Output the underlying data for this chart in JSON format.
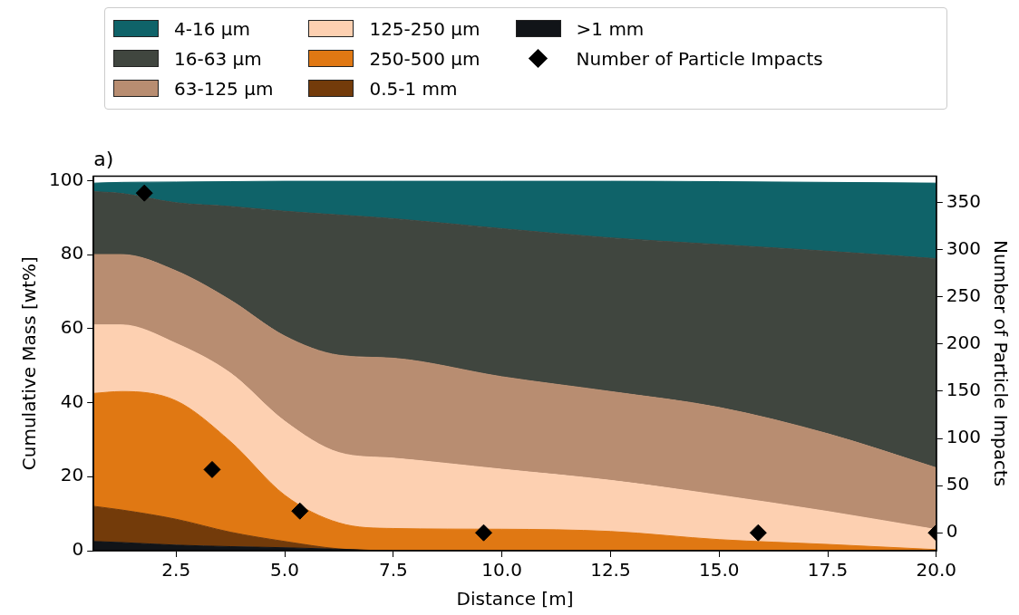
{
  "chart_data": {
    "type": "area",
    "title": "a)",
    "xlabel": "Distance [m]",
    "ylabel": "Cumulative Mass [wt%]",
    "y2label": "Number of Particle Impacts",
    "x": [
      0.6,
      1.25,
      2.5,
      3.75,
      5,
      6.25,
      7.5,
      10,
      12.5,
      15,
      17.5,
      20
    ],
    "stacked": true,
    "series": [
      {
        "name": ">1 mm",
        "color": "#111418",
        "values": [
          2.5,
          2.2,
          1.5,
          1.1,
          0.8,
          0.4,
          0,
          0,
          0,
          0,
          0,
          0
        ]
      },
      {
        "name": "0.5-1 mm",
        "color": "#733b0a",
        "values": [
          9.5,
          8.8,
          7,
          3.9,
          1.7,
          0.1,
          0,
          0,
          0,
          0,
          0,
          0
        ]
      },
      {
        "name": "250-500 μm",
        "color": "#e07813",
        "values": [
          30.5,
          32,
          32,
          24.5,
          12.5,
          7,
          6,
          5.8,
          5.2,
          3,
          1.7,
          0.3
        ]
      },
      {
        "name": "125-250 μm",
        "color": "#fdd0b1",
        "values": [
          18.5,
          18,
          15.5,
          18.5,
          20,
          19,
          19,
          16.2,
          13.8,
          12,
          8.9,
          5.4
        ]
      },
      {
        "name": "63-125 μm",
        "color": "#b88d71",
        "values": [
          19,
          19,
          19.6,
          19.7,
          23,
          26.3,
          27,
          25,
          24,
          23.7,
          21,
          16.7
        ]
      },
      {
        "name": "16-63 μm",
        "color": "#40463f",
        "values": [
          17,
          16.5,
          18.4,
          25.3,
          33.7,
          37.9,
          37.7,
          40,
          41.5,
          44,
          49.3,
          56.5
        ]
      },
      {
        "name": "4-16 μm",
        "color": "#0f6369",
        "values": [
          2.3,
          3,
          5.6,
          6.7,
          8.1,
          9.1,
          10.1,
          12.8,
          15.3,
          17,
          18.6,
          20.4
        ]
      },
      {
        "name": "Number of Particle Impacts",
        "type": "scatter",
        "axis": "y2",
        "color": "#000000",
        "marker": "diamond",
        "x": [
          1.77,
          3.33,
          5.35,
          9.58,
          15.9,
          20
        ],
        "values": [
          360,
          67,
          23,
          0,
          0,
          0
        ]
      }
    ],
    "xlim": [
      0.6,
      20
    ],
    "xticks": [
      2.5,
      {
        "value": 5,
        "label": "5.0"
      },
      7.5,
      {
        "value": 10,
        "label": "10.0"
      },
      12.5,
      {
        "value": 15,
        "label": "15.0"
      },
      17.5,
      {
        "value": 20,
        "label": "20.0"
      }
    ],
    "ylim": [
      0,
      101.2
    ],
    "yticks": [
      0,
      20,
      40,
      60,
      80,
      100
    ],
    "y2lim": [
      -19,
      378
    ],
    "y2ticks": [
      0,
      50,
      100,
      150,
      200,
      250,
      300,
      350
    ],
    "grid": false,
    "legend": "top"
  }
}
